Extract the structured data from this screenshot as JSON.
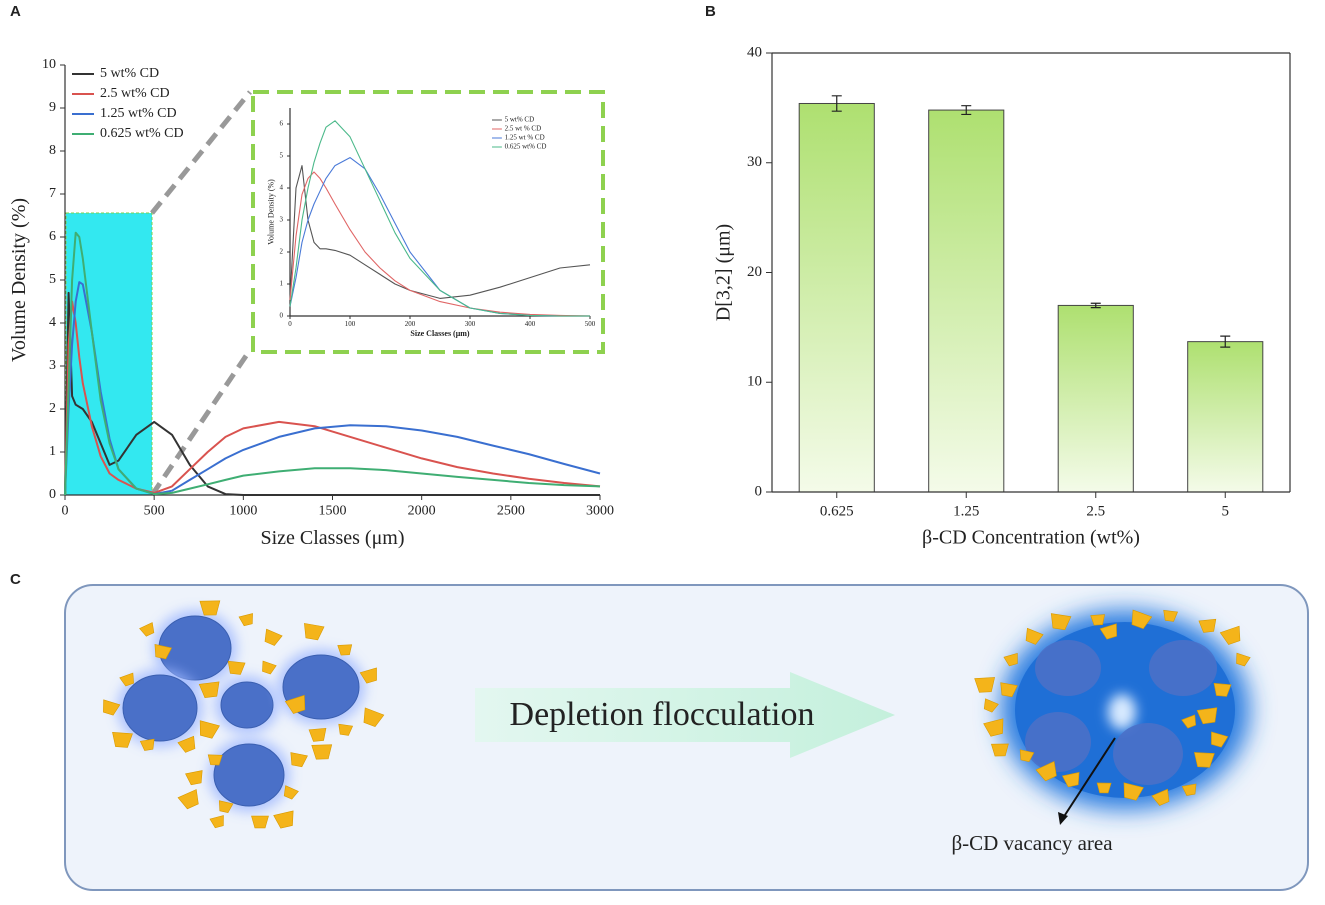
{
  "panel_labels": [
    "A",
    "B",
    "C"
  ],
  "chart_data": [
    {
      "type": "line",
      "xlabel": "Size Classes (μm)",
      "ylabel": "Volume Density (%)",
      "xlim": [
        0,
        3000
      ],
      "ylim": [
        0,
        10
      ],
      "xticks": [
        0,
        500,
        1000,
        1500,
        2000,
        2500,
        3000
      ],
      "yticks": [
        0,
        1,
        2,
        3,
        4,
        5,
        6,
        7,
        8,
        9,
        10
      ],
      "legend": "upper left",
      "x": [
        0,
        20,
        40,
        60,
        80,
        100,
        150,
        200,
        250,
        300,
        400,
        500,
        600,
        700,
        800,
        900,
        1000,
        1200,
        1400,
        1600,
        1800,
        2000,
        2200,
        2400,
        2600,
        2800,
        3000
      ],
      "series": [
        {
          "name": "5 wt% CD",
          "color": "#333333",
          "values": [
            0,
            4.7,
            2.3,
            2.1,
            2.05,
            2.0,
            1.7,
            1.2,
            0.7,
            0.8,
            1.4,
            1.7,
            1.4,
            0.7,
            0.2,
            0.02,
            0,
            0,
            0,
            0,
            0,
            0,
            0,
            0,
            0,
            0,
            0
          ]
        },
        {
          "name": "2.5 wt% CD",
          "color": "#d9534f",
          "values": [
            0,
            3.5,
            4.5,
            4.0,
            3.2,
            2.6,
            1.6,
            0.9,
            0.5,
            0.35,
            0.15,
            0.05,
            0.2,
            0.6,
            1.0,
            1.35,
            1.55,
            1.7,
            1.6,
            1.35,
            1.1,
            0.85,
            0.65,
            0.5,
            0.38,
            0.28,
            0.2
          ]
        },
        {
          "name": "1.25 wt% CD",
          "color": "#3a6fd0",
          "values": [
            0,
            2.0,
            3.5,
            4.5,
            4.95,
            4.9,
            3.8,
            2.4,
            1.3,
            0.6,
            0.15,
            0.02,
            0.1,
            0.35,
            0.6,
            0.85,
            1.05,
            1.35,
            1.55,
            1.62,
            1.6,
            1.5,
            1.35,
            1.15,
            0.95,
            0.72,
            0.5
          ]
        },
        {
          "name": "0.625 wt% CD",
          "color": "#3fae73",
          "values": [
            0,
            2.5,
            5.0,
            6.1,
            6.0,
            5.5,
            3.8,
            2.2,
            1.2,
            0.6,
            0.15,
            0.02,
            0.05,
            0.15,
            0.25,
            0.35,
            0.45,
            0.55,
            0.62,
            0.62,
            0.58,
            0.5,
            0.42,
            0.35,
            0.28,
            0.23,
            0.2
          ]
        }
      ]
    },
    {
      "type": "line",
      "xlabel": "Size Classes (μm)",
      "ylabel": "Volume Density (%)",
      "xlim": [
        0,
        500
      ],
      "ylim": [
        0,
        6.5
      ],
      "xticks": [
        0,
        100,
        200,
        300,
        400,
        500
      ],
      "yticks": [
        0,
        1,
        2,
        3,
        4,
        5,
        6
      ],
      "legend": "upper right",
      "x": [
        0,
        10,
        20,
        30,
        40,
        50,
        60,
        75,
        100,
        125,
        150,
        175,
        200,
        250,
        300,
        350,
        400,
        450,
        500
      ],
      "series": [
        {
          "name": "5 wt% CD",
          "color": "#555555",
          "values": [
            0.5,
            4.0,
            4.7,
            3.0,
            2.3,
            2.1,
            2.1,
            2.05,
            1.9,
            1.6,
            1.3,
            1.0,
            0.8,
            0.55,
            0.65,
            0.9,
            1.2,
            1.5,
            1.6
          ]
        },
        {
          "name": "2.5 wt % CD",
          "color": "#e06666",
          "values": [
            0.5,
            2.5,
            3.8,
            4.3,
            4.5,
            4.3,
            4.0,
            3.5,
            2.7,
            2.0,
            1.5,
            1.1,
            0.8,
            0.45,
            0.25,
            0.12,
            0.05,
            0.02,
            0
          ]
        },
        {
          "name": "1.25 wt % CD",
          "color": "#4a7ad8",
          "values": [
            0.3,
            1.2,
            2.3,
            3.0,
            3.5,
            3.9,
            4.3,
            4.7,
            4.95,
            4.6,
            3.8,
            2.9,
            2.0,
            0.8,
            0.25,
            0.08,
            0.02,
            0,
            0
          ]
        },
        {
          "name": "0.625 wt% CD",
          "color": "#4bb98a",
          "values": [
            0.3,
            1.5,
            3.0,
            4.0,
            4.8,
            5.4,
            5.9,
            6.1,
            5.6,
            4.6,
            3.6,
            2.6,
            1.8,
            0.8,
            0.25,
            0.08,
            0.02,
            0,
            0
          ]
        }
      ]
    },
    {
      "type": "bar",
      "xlabel": "β-CD Concentration (wt%)",
      "ylabel": "D[3,2] (μm)",
      "categories": [
        "0.625",
        "1.25",
        "2.5",
        "5"
      ],
      "values": [
        35.4,
        34.8,
        17.0,
        13.7
      ],
      "errors": [
        0.7,
        0.4,
        0.2,
        0.5
      ],
      "color": "#b5e37a",
      "ylim": [
        0,
        40
      ],
      "yticks": [
        0,
        10,
        20,
        30,
        40
      ]
    }
  ],
  "diagram": {
    "process": "Depletion flocculation",
    "annotation": "β-CD vacancy area"
  }
}
